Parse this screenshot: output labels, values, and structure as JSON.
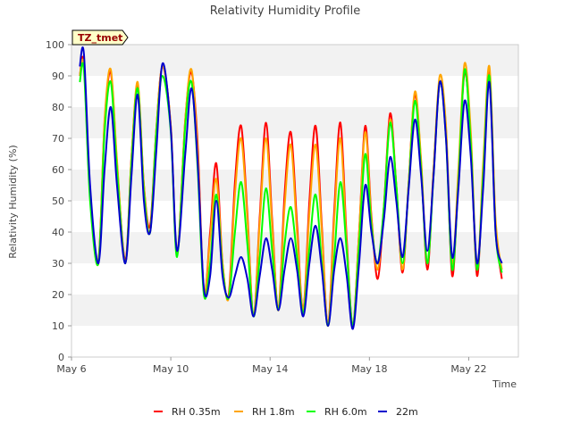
{
  "chart_data": {
    "type": "line",
    "title": "Relativity Humidity Profile",
    "xlabel": "Time",
    "ylabel": "Relativity Humidity (%)",
    "site_badge": "TZ_tmet",
    "ylim": [
      0,
      100
    ],
    "yticks": [
      0,
      10,
      20,
      30,
      40,
      50,
      60,
      70,
      80,
      90,
      100
    ],
    "xlim": [
      "2024-05-06",
      "2024-05-24"
    ],
    "xticks": [
      {
        "date": "2024-05-06",
        "label": "May 6"
      },
      {
        "date": "2024-05-10",
        "label": "May 10"
      },
      {
        "date": "2024-05-14",
        "label": "May 14"
      },
      {
        "date": "2024-05-18",
        "label": "May 18"
      },
      {
        "date": "2024-05-22",
        "label": "May 22"
      }
    ],
    "grid": "horizontal bands",
    "legend_position": "bottom",
    "x": [
      "2024-05-06 08:00",
      "2024-05-06 12:00",
      "2024-05-06 18:00",
      "2024-05-07 02:00",
      "2024-05-07 08:00",
      "2024-05-07 14:00",
      "2024-05-07 20:00",
      "2024-05-08 04:00",
      "2024-05-08 10:00",
      "2024-05-08 16:00",
      "2024-05-08 22:00",
      "2024-05-09 04:00",
      "2024-05-09 10:00",
      "2024-05-09 16:00",
      "2024-05-10 00:00",
      "2024-05-10 06:00",
      "2024-05-10 14:00",
      "2024-05-10 20:00",
      "2024-05-11 02:00",
      "2024-05-11 08:00",
      "2024-05-11 14:00",
      "2024-05-11 20:00",
      "2024-05-12 02:00",
      "2024-05-12 08:00",
      "2024-05-12 14:00",
      "2024-05-12 20:00",
      "2024-05-13 02:00",
      "2024-05-13 08:00",
      "2024-05-13 14:00",
      "2024-05-13 20:00",
      "2024-05-14 02:00",
      "2024-05-14 08:00",
      "2024-05-14 14:00",
      "2024-05-14 20:00",
      "2024-05-15 02:00",
      "2024-05-15 08:00",
      "2024-05-15 14:00",
      "2024-05-15 20:00",
      "2024-05-16 02:00",
      "2024-05-16 08:00",
      "2024-05-16 14:00",
      "2024-05-16 20:00",
      "2024-05-17 02:00",
      "2024-05-17 08:00",
      "2024-05-17 14:00",
      "2024-05-17 20:00",
      "2024-05-18 02:00",
      "2024-05-18 08:00",
      "2024-05-18 14:00",
      "2024-05-18 20:00",
      "2024-05-19 02:00",
      "2024-05-19 08:00",
      "2024-05-19 14:00",
      "2024-05-19 20:00",
      "2024-05-20 02:00",
      "2024-05-20 08:00",
      "2024-05-20 14:00",
      "2024-05-20 20:00",
      "2024-05-21 02:00",
      "2024-05-21 08:00",
      "2024-05-21 14:00",
      "2024-05-21 20:00",
      "2024-05-22 02:00",
      "2024-05-22 08:00",
      "2024-05-22 14:00",
      "2024-05-22 20:00",
      "2024-05-23 02:00",
      "2024-05-23 08:00"
    ],
    "series": [
      {
        "name": "RH 0.35m",
        "color": "#ff0000",
        "values": [
          90,
          94,
          52,
          31,
          75,
          91,
          62,
          31,
          64,
          87,
          55,
          42,
          73,
          93,
          74,
          33,
          76,
          91,
          68,
          21,
          40,
          62,
          30,
          20,
          56,
          74,
          46,
          13,
          45,
          75,
          44,
          15,
          52,
          72,
          43,
          15,
          50,
          74,
          42,
          10,
          47,
          75,
          38,
          10,
          40,
          74,
          45,
          25,
          48,
          78,
          55,
          27,
          56,
          84,
          62,
          28,
          60,
          88,
          73,
          26,
          58,
          91,
          70,
          26,
          60,
          91,
          42,
          25
        ]
      },
      {
        "name": "RH 1.8m",
        "color": "#ffa500",
        "values": [
          90,
          93,
          52,
          30,
          76,
          92,
          63,
          30,
          64,
          88,
          55,
          40,
          73,
          93,
          74,
          33,
          76,
          92,
          65,
          21,
          38,
          57,
          30,
          19,
          52,
          70,
          44,
          13,
          43,
          70,
          42,
          15,
          48,
          68,
          40,
          15,
          46,
          68,
          40,
          10,
          44,
          70,
          36,
          10,
          40,
          72,
          44,
          28,
          48,
          76,
          55,
          28,
          56,
          85,
          63,
          30,
          60,
          90,
          74,
          30,
          60,
          94,
          72,
          28,
          62,
          93,
          44,
          28
        ]
      },
      {
        "name": "RH 6.0m",
        "color": "#00ff00",
        "values": [
          88,
          92,
          50,
          30,
          72,
          88,
          60,
          30,
          62,
          86,
          53,
          40,
          72,
          90,
          72,
          32,
          74,
          88,
          60,
          20,
          30,
          52,
          28,
          19,
          40,
          56,
          36,
          13,
          32,
          54,
          34,
          15,
          36,
          48,
          32,
          14,
          35,
          52,
          30,
          10,
          32,
          56,
          34,
          10,
          36,
          65,
          42,
          30,
          48,
          75,
          55,
          30,
          55,
          82,
          60,
          30,
          58,
          88,
          70,
          28,
          56,
          92,
          68,
          28,
          58,
          90,
          40,
          27
        ]
      },
      {
        "name": "22m",
        "color": "#0000cd",
        "values": [
          93,
          97,
          55,
          30,
          60,
          80,
          55,
          30,
          58,
          84,
          50,
          40,
          66,
          94,
          73,
          34,
          65,
          86,
          62,
          22,
          26,
          50,
          26,
          19,
          26,
          32,
          25,
          13,
          26,
          38,
          28,
          15,
          28,
          38,
          28,
          13,
          30,
          42,
          28,
          10,
          28,
          38,
          26,
          9,
          30,
          55,
          40,
          30,
          44,
          64,
          50,
          32,
          54,
          76,
          58,
          34,
          58,
          88,
          70,
          32,
          54,
          82,
          64,
          30,
          54,
          88,
          40,
          30
        ]
      }
    ]
  }
}
